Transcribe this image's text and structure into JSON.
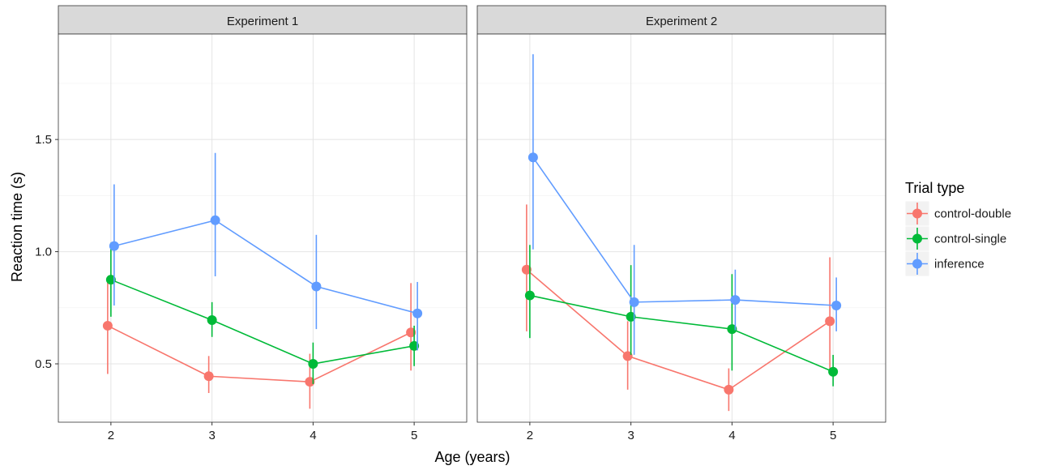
{
  "chart_data": {
    "type": "line",
    "xlabel": "Age (years)",
    "ylabel": "Reaction time (s)",
    "x_ticks": [
      2,
      3,
      4,
      5
    ],
    "y_ticks": [
      "0.5",
      "1.0",
      "1.5"
    ],
    "xlim": [
      1.48,
      5.52
    ],
    "ylim": [
      0.24,
      1.97
    ],
    "grid": true,
    "legend": {
      "title": "Trial type",
      "position": "right",
      "entries": [
        "control-double",
        "control-single",
        "inference"
      ]
    },
    "colors": {
      "control-double": "#f8766d",
      "control-single": "#00ba38",
      "inference": "#619cff"
    },
    "panels": [
      {
        "title": "Experiment 1",
        "series": [
          {
            "name": "control-double",
            "x": [
              2,
              3,
              4,
              5
            ],
            "y": [
              0.67,
              0.445,
              0.42,
              0.64
            ],
            "lower": [
              0.455,
              0.37,
              0.3,
              0.47
            ],
            "upper": [
              0.865,
              0.535,
              0.545,
              0.86
            ]
          },
          {
            "name": "control-single",
            "x": [
              2,
              3,
              4,
              5
            ],
            "y": [
              0.875,
              0.695,
              0.5,
              0.58
            ],
            "lower": [
              0.71,
              0.62,
              0.41,
              0.49
            ],
            "upper": [
              1.04,
              0.775,
              0.595,
              0.67
            ]
          },
          {
            "name": "inference",
            "x": [
              2,
              3,
              4,
              5
            ],
            "y": [
              1.025,
              1.14,
              0.845,
              0.725
            ],
            "lower": [
              0.76,
              0.89,
              0.655,
              0.56
            ],
            "upper": [
              1.3,
              1.44,
              1.075,
              0.865
            ]
          }
        ]
      },
      {
        "title": "Experiment 2",
        "series": [
          {
            "name": "control-double",
            "x": [
              2,
              3,
              4,
              5
            ],
            "y": [
              0.92,
              0.535,
              0.385,
              0.69
            ],
            "lower": [
              0.645,
              0.385,
              0.29,
              0.47
            ],
            "upper": [
              1.21,
              0.69,
              0.48,
              0.975
            ]
          },
          {
            "name": "control-single",
            "x": [
              2,
              3,
              4,
              5
            ],
            "y": [
              0.805,
              0.71,
              0.655,
              0.465
            ],
            "lower": [
              0.615,
              0.54,
              0.47,
              0.4
            ],
            "upper": [
              1.03,
              0.94,
              0.9,
              0.54
            ]
          },
          {
            "name": "inference",
            "x": [
              2,
              3,
              4,
              5
            ],
            "y": [
              1.42,
              0.775,
              0.785,
              0.76
            ],
            "lower": [
              1.01,
              0.54,
              0.65,
              0.645
            ],
            "upper": [
              1.88,
              1.03,
              0.92,
              0.885
            ]
          }
        ]
      }
    ]
  }
}
